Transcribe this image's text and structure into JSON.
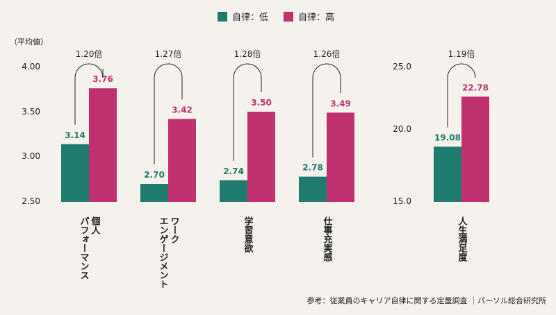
{
  "chart_data": {
    "type": "bar",
    "legend": {
      "position": "top-center",
      "items": [
        {
          "label": "自律：低",
          "color": "#1f7b6e"
        },
        {
          "label": "自律：高",
          "color": "#c0326f"
        }
      ]
    },
    "unit_label": "（平均値）",
    "source": "参考：従業員のキャリア自律に関する定量調査 ｜パーソル総合研究所",
    "panels": [
      {
        "ylim": [
          2.5,
          4.0
        ],
        "yticks": [
          "2.50",
          "3.00",
          "3.50",
          "4.00"
        ],
        "grid": false,
        "groups": [
          {
            "category": [
              "個人",
              "パフォーマンス"
            ],
            "values": [
              3.14,
              3.76
            ],
            "value_labels": [
              "3.14",
              "3.76"
            ],
            "ratio": "1.20倍"
          },
          {
            "category": [
              "ワーク",
              "エンゲージメント"
            ],
            "values": [
              2.7,
              3.42
            ],
            "value_labels": [
              "2.70",
              "3.42"
            ],
            "ratio": "1.27倍"
          },
          {
            "category": [
              "学習意欲"
            ],
            "values": [
              2.74,
              3.5
            ],
            "value_labels": [
              "2.74",
              "3.50"
            ],
            "ratio": "1.28倍"
          },
          {
            "category": [
              "仕事充実感"
            ],
            "values": [
              2.78,
              3.49
            ],
            "value_labels": [
              "2.78",
              "3.49"
            ],
            "ratio": "1.26倍"
          }
        ]
      },
      {
        "ylim": [
          15.0,
          25.0
        ],
        "yticks": [
          "15.0",
          "20.0",
          "25.0"
        ],
        "grid": false,
        "groups": [
          {
            "category": [
              "人生満足度"
            ],
            "values": [
              19.08,
              22.78
            ],
            "value_labels": [
              "19.08",
              "22.78"
            ],
            "ratio": "1.19倍"
          }
        ]
      }
    ]
  }
}
